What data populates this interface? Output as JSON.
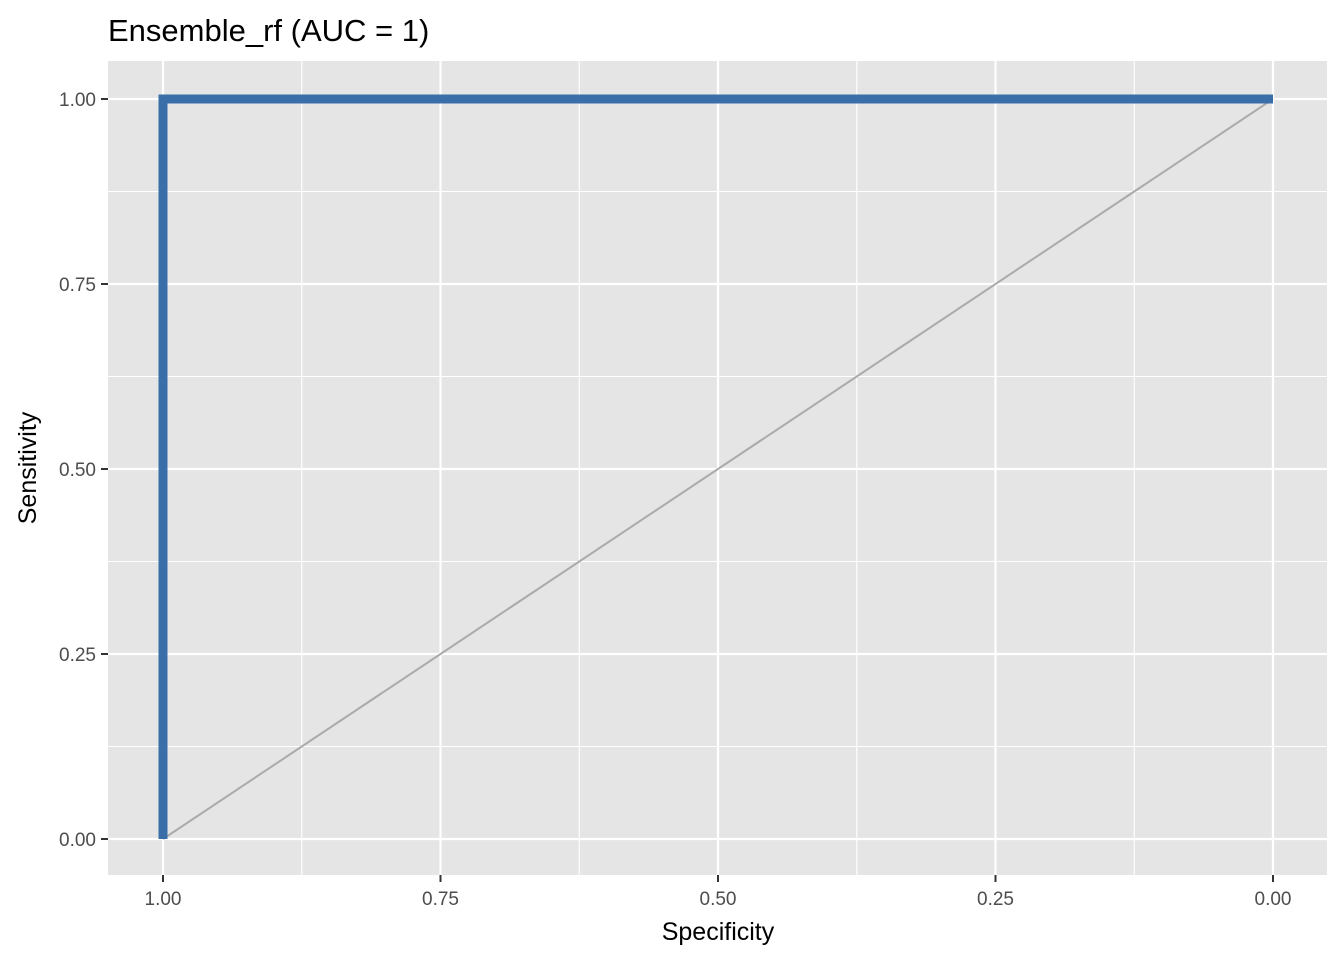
{
  "chart_data": {
    "type": "line",
    "title": "Ensemble_rf (AUC = 1)",
    "xlabel": "Specificity",
    "ylabel": "Sensitivity",
    "x_reversed": true,
    "xlim": [
      1.0,
      0.0
    ],
    "ylim": [
      0.0,
      1.0
    ],
    "x_ticks": [
      1.0,
      0.75,
      0.5,
      0.25,
      0.0
    ],
    "x_tick_labels": [
      "1.00",
      "0.75",
      "0.50",
      "0.25",
      "0.00"
    ],
    "y_ticks": [
      0.0,
      0.25,
      0.5,
      0.75,
      1.0
    ],
    "y_tick_labels": [
      "0.00",
      "0.25",
      "0.50",
      "0.75",
      "1.00"
    ],
    "grid": true,
    "series": [
      {
        "x": [
          1.0,
          1.0,
          0.0
        ],
        "y": [
          0.0,
          1.0,
          1.0
        ],
        "color": "#3a6ea8"
      }
    ],
    "reference_line": {
      "x": [
        1.0,
        0.0
      ],
      "y": [
        0.0,
        1.0
      ],
      "color": "#aaaaaa"
    },
    "colors": {
      "panel_background": "#e5e5e5",
      "grid": "#ffffff"
    }
  }
}
